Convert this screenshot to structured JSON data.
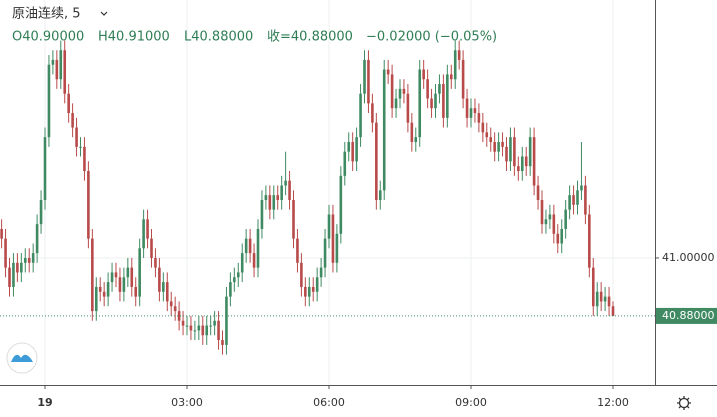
{
  "chart_data": {
    "type": "candlestick",
    "header": {
      "symbol": "原油连续, 5",
      "open": "O40.90000",
      "high": "H40.91000",
      "low": "L40.88000",
      "close": "收=40.88000",
      "change": "−0.02000 (−0.05%)"
    },
    "categories": [
      null,
      null,
      null,
      null,
      null,
      null,
      null,
      null,
      null,
      null,
      null,
      "19",
      null,
      null,
      null,
      null,
      null,
      null,
      null,
      null,
      null,
      null,
      null,
      null,
      null,
      null,
      null,
      null,
      null,
      null,
      null,
      null,
      null,
      null,
      null,
      null,
      null,
      null,
      null,
      null,
      null,
      null,
      null,
      null,
      null,
      null,
      null,
      "03:00",
      null,
      null,
      null,
      null,
      null,
      null,
      null,
      null,
      null,
      null,
      null,
      null,
      null,
      null,
      null,
      null,
      null,
      null,
      null,
      null,
      null,
      null,
      null,
      null,
      null,
      null,
      null,
      null,
      null,
      null,
      null,
      null,
      null,
      null,
      null,
      "06:00",
      null,
      null,
      null,
      null,
      null,
      null,
      null,
      null,
      null,
      null,
      null,
      null,
      null,
      null,
      null,
      null,
      null,
      null,
      null,
      null,
      null,
      null,
      null,
      null,
      null,
      null,
      null,
      null,
      null,
      null,
      null,
      null,
      null,
      null,
      null,
      "09:00",
      null,
      null,
      null,
      null,
      null,
      null,
      null,
      null,
      null,
      null,
      null,
      null,
      null,
      null,
      null,
      null,
      null,
      null,
      null,
      null,
      null,
      null,
      null,
      null,
      null,
      null,
      null,
      null,
      null,
      null,
      null,
      null,
      null,
      null,
      null,
      "12:00"
    ],
    "series": [
      {
        "up_color": "#3f8a62",
        "down_color": "#b84a4a",
        "values": [
          [
            41.06,
            41.08,
            41.02,
            41.04
          ],
          [
            41.04,
            41.06,
            40.96,
            40.98
          ],
          [
            40.98,
            41.0,
            40.92,
            40.94
          ],
          [
            40.94,
            41.01,
            40.92,
            40.99
          ],
          [
            40.99,
            41.01,
            40.95,
            40.97
          ],
          [
            40.97,
            41.01,
            40.95,
            40.99
          ],
          [
            40.99,
            41.02,
            40.97,
            41.0
          ],
          [
            41.0,
            41.02,
            40.97,
            40.99
          ],
          [
            40.99,
            41.03,
            40.97,
            41.01
          ],
          [
            41.01,
            41.09,
            40.99,
            41.07
          ],
          [
            41.07,
            41.14,
            41.05,
            41.12
          ],
          [
            41.12,
            41.27,
            41.1,
            41.25
          ],
          [
            41.25,
            41.42,
            41.23,
            41.4
          ],
          [
            41.4,
            41.43,
            41.38,
            41.41
          ],
          [
            41.41,
            41.43,
            41.35,
            41.37
          ],
          [
            41.37,
            41.45,
            41.35,
            41.43
          ],
          [
            41.43,
            41.45,
            41.32,
            41.34
          ],
          [
            41.34,
            41.36,
            41.28,
            41.3
          ],
          [
            41.3,
            41.32,
            41.25,
            41.27
          ],
          [
            41.27,
            41.29,
            41.21,
            41.23
          ],
          [
            41.23,
            41.25,
            41.21,
            41.23
          ],
          [
            41.23,
            41.25,
            41.16,
            41.18
          ],
          [
            41.18,
            41.2,
            41.02,
            41.04
          ],
          [
            41.04,
            41.06,
            40.87,
            40.89
          ],
          [
            40.89,
            40.96,
            40.87,
            40.94
          ],
          [
            40.94,
            40.96,
            40.91,
            40.93
          ],
          [
            40.93,
            40.95,
            40.9,
            40.92
          ],
          [
            40.92,
            40.97,
            40.9,
            40.95
          ],
          [
            40.95,
            40.99,
            40.93,
            40.97
          ],
          [
            40.97,
            40.99,
            40.94,
            40.96
          ],
          [
            40.96,
            40.98,
            40.91,
            40.93
          ],
          [
            40.93,
            40.98,
            40.91,
            40.96
          ],
          [
            40.96,
            41.0,
            40.94,
            40.98
          ],
          [
            40.98,
            41.0,
            40.92,
            40.94
          ],
          [
            40.94,
            40.96,
            40.9,
            40.92
          ],
          [
            40.92,
            41.04,
            40.9,
            41.02
          ],
          [
            41.02,
            41.1,
            41.0,
            41.08
          ],
          [
            41.08,
            41.1,
            41.02,
            41.04
          ],
          [
            41.04,
            41.06,
            40.98,
            41.0
          ],
          [
            41.0,
            41.02,
            40.96,
            40.98
          ],
          [
            40.98,
            41.0,
            40.91,
            40.93
          ],
          [
            40.93,
            40.97,
            40.91,
            40.95
          ],
          [
            40.95,
            40.97,
            40.89,
            40.91
          ],
          [
            40.91,
            40.93,
            40.88,
            40.9
          ],
          [
            40.9,
            40.92,
            40.87,
            40.89
          ],
          [
            40.89,
            40.91,
            40.85,
            40.87
          ],
          [
            40.87,
            40.89,
            40.84,
            40.86
          ],
          [
            40.86,
            40.88,
            40.84,
            40.86
          ],
          [
            40.86,
            40.88,
            40.83,
            40.85
          ],
          [
            40.85,
            40.87,
            40.83,
            40.85
          ],
          [
            40.85,
            40.88,
            40.83,
            40.86
          ],
          [
            40.86,
            40.88,
            40.82,
            40.84
          ],
          [
            40.84,
            40.88,
            40.82,
            40.86
          ],
          [
            40.86,
            40.88,
            40.84,
            40.86
          ],
          [
            40.86,
            40.89,
            40.84,
            40.87
          ],
          [
            40.87,
            40.89,
            40.81,
            40.83
          ],
          [
            40.83,
            40.85,
            40.8,
            40.82
          ],
          [
            40.82,
            40.94,
            40.8,
            40.92
          ],
          [
            40.92,
            40.97,
            40.9,
            40.95
          ],
          [
            40.95,
            40.98,
            40.93,
            40.96
          ],
          [
            40.96,
            40.99,
            40.94,
            40.97
          ],
          [
            40.97,
            41.03,
            40.95,
            41.01
          ],
          [
            41.01,
            41.06,
            40.99,
            41.04
          ],
          [
            41.04,
            41.06,
            40.99,
            41.01
          ],
          [
            41.01,
            41.03,
            40.96,
            40.98
          ],
          [
            40.98,
            41.08,
            40.96,
            41.06
          ],
          [
            41.06,
            41.14,
            41.04,
            41.12
          ],
          [
            41.12,
            41.15,
            41.1,
            41.13
          ],
          [
            41.13,
            41.15,
            41.08,
            41.1
          ],
          [
            41.1,
            41.15,
            41.08,
            41.13
          ],
          [
            41.13,
            41.15,
            41.1,
            41.12
          ],
          [
            41.12,
            41.17,
            41.1,
            41.15
          ],
          [
            41.15,
            41.22,
            41.13,
            41.16
          ],
          [
            41.16,
            41.18,
            41.1,
            41.12
          ],
          [
            41.12,
            41.14,
            41.02,
            41.04
          ],
          [
            41.04,
            41.06,
            40.97,
            40.99
          ],
          [
            40.99,
            41.01,
            40.92,
            40.94
          ],
          [
            40.94,
            40.96,
            40.9,
            40.92
          ],
          [
            40.92,
            40.96,
            40.9,
            40.94
          ],
          [
            40.94,
            40.96,
            40.91,
            40.93
          ],
          [
            40.93,
            40.98,
            40.91,
            40.96
          ],
          [
            40.96,
            41.0,
            40.94,
            40.98
          ],
          [
            40.98,
            41.06,
            40.96,
            41.04
          ],
          [
            41.04,
            41.11,
            41.02,
            41.09
          ],
          [
            41.09,
            41.11,
            40.97,
            40.99
          ],
          [
            40.99,
            41.07,
            40.97,
            41.05
          ],
          [
            41.05,
            41.19,
            41.03,
            41.17
          ],
          [
            41.17,
            41.24,
            41.15,
            41.22
          ],
          [
            41.22,
            41.26,
            41.2,
            41.24
          ],
          [
            41.24,
            41.26,
            41.18,
            41.2
          ],
          [
            41.2,
            41.27,
            41.18,
            41.25
          ],
          [
            41.25,
            41.36,
            41.23,
            41.34
          ],
          [
            41.34,
            41.43,
            41.32,
            41.41
          ],
          [
            41.41,
            41.43,
            41.3,
            41.32
          ],
          [
            41.32,
            41.34,
            41.26,
            41.28
          ],
          [
            41.28,
            41.3,
            41.1,
            41.12
          ],
          [
            41.12,
            41.16,
            41.1,
            41.14
          ],
          [
            41.14,
            41.41,
            41.12,
            41.39
          ],
          [
            41.39,
            41.41,
            41.36,
            41.38
          ],
          [
            41.38,
            41.4,
            41.29,
            41.31
          ],
          [
            41.31,
            41.35,
            41.29,
            41.33
          ],
          [
            41.33,
            41.37,
            41.31,
            41.35
          ],
          [
            41.35,
            41.37,
            41.32,
            41.34
          ],
          [
            41.34,
            41.36,
            41.26,
            41.28
          ],
          [
            41.28,
            41.3,
            41.22,
            41.24
          ],
          [
            41.24,
            41.27,
            41.22,
            41.25
          ],
          [
            41.25,
            41.41,
            41.23,
            41.39
          ],
          [
            41.39,
            41.41,
            41.35,
            41.37
          ],
          [
            41.37,
            41.39,
            41.31,
            41.33
          ],
          [
            41.33,
            41.35,
            41.29,
            41.31
          ],
          [
            41.31,
            41.36,
            41.29,
            41.34
          ],
          [
            41.34,
            41.38,
            41.32,
            41.36
          ],
          [
            41.36,
            41.38,
            41.27,
            41.29
          ],
          [
            41.29,
            41.4,
            41.27,
            41.38
          ],
          [
            41.38,
            41.4,
            41.35,
            41.37
          ],
          [
            41.37,
            41.45,
            41.35,
            41.43
          ],
          [
            41.43,
            41.45,
            41.39,
            41.41
          ],
          [
            41.41,
            41.43,
            41.31,
            41.33
          ],
          [
            41.33,
            41.35,
            41.27,
            41.29
          ],
          [
            41.29,
            41.33,
            41.27,
            41.31
          ],
          [
            41.31,
            41.33,
            41.28,
            41.3
          ],
          [
            41.3,
            41.32,
            41.26,
            41.28
          ],
          [
            41.28,
            41.3,
            41.24,
            41.26
          ],
          [
            41.26,
            41.28,
            41.23,
            41.25
          ],
          [
            41.25,
            41.27,
            41.22,
            41.24
          ],
          [
            41.24,
            41.26,
            41.2,
            41.22
          ],
          [
            41.22,
            41.26,
            41.2,
            41.24
          ],
          [
            41.24,
            41.26,
            41.21,
            41.23
          ],
          [
            41.23,
            41.25,
            41.18,
            41.2
          ],
          [
            41.2,
            41.27,
            41.18,
            41.25
          ],
          [
            41.25,
            41.27,
            41.17,
            41.19
          ],
          [
            41.19,
            41.21,
            41.16,
            41.18
          ],
          [
            41.18,
            41.23,
            41.16,
            41.21
          ],
          [
            41.21,
            41.23,
            41.17,
            41.19
          ],
          [
            41.19,
            41.27,
            41.17,
            41.25
          ],
          [
            41.25,
            41.27,
            41.13,
            41.15
          ],
          [
            41.15,
            41.17,
            41.1,
            41.12
          ],
          [
            41.12,
            41.14,
            41.05,
            41.07
          ],
          [
            41.07,
            41.1,
            41.05,
            41.08
          ],
          [
            41.08,
            41.11,
            41.06,
            41.09
          ],
          [
            41.09,
            41.11,
            41.03,
            41.05
          ],
          [
            41.05,
            41.07,
            41.01,
            41.03
          ],
          [
            41.03,
            41.08,
            41.01,
            41.06
          ],
          [
            41.06,
            41.12,
            41.04,
            41.1
          ],
          [
            41.1,
            41.15,
            41.08,
            41.13
          ],
          [
            41.13,
            41.15,
            41.09,
            41.11
          ],
          [
            41.11,
            41.16,
            41.09,
            41.14
          ],
          [
            41.14,
            41.24,
            41.12,
            41.15
          ],
          [
            41.15,
            41.17,
            41.07,
            41.09
          ],
          [
            41.09,
            41.11,
            40.96,
            40.98
          ],
          [
            40.98,
            41.0,
            40.88,
            40.9
          ],
          [
            40.9,
            40.95,
            40.88,
            40.93
          ],
          [
            40.93,
            40.95,
            40.89,
            40.91
          ],
          [
            40.91,
            40.94,
            40.89,
            40.92
          ],
          [
            40.92,
            40.94,
            40.88,
            40.9
          ],
          [
            40.9,
            40.91,
            40.88,
            40.88
          ]
        ]
      }
    ],
    "ylim": [
      40.737,
      41.534
    ],
    "yticks": [
      {
        "value": 41,
        "label": "41.00000"
      }
    ],
    "last_price": {
      "value": 40.88,
      "label": "40.88000"
    },
    "grid": true
  }
}
